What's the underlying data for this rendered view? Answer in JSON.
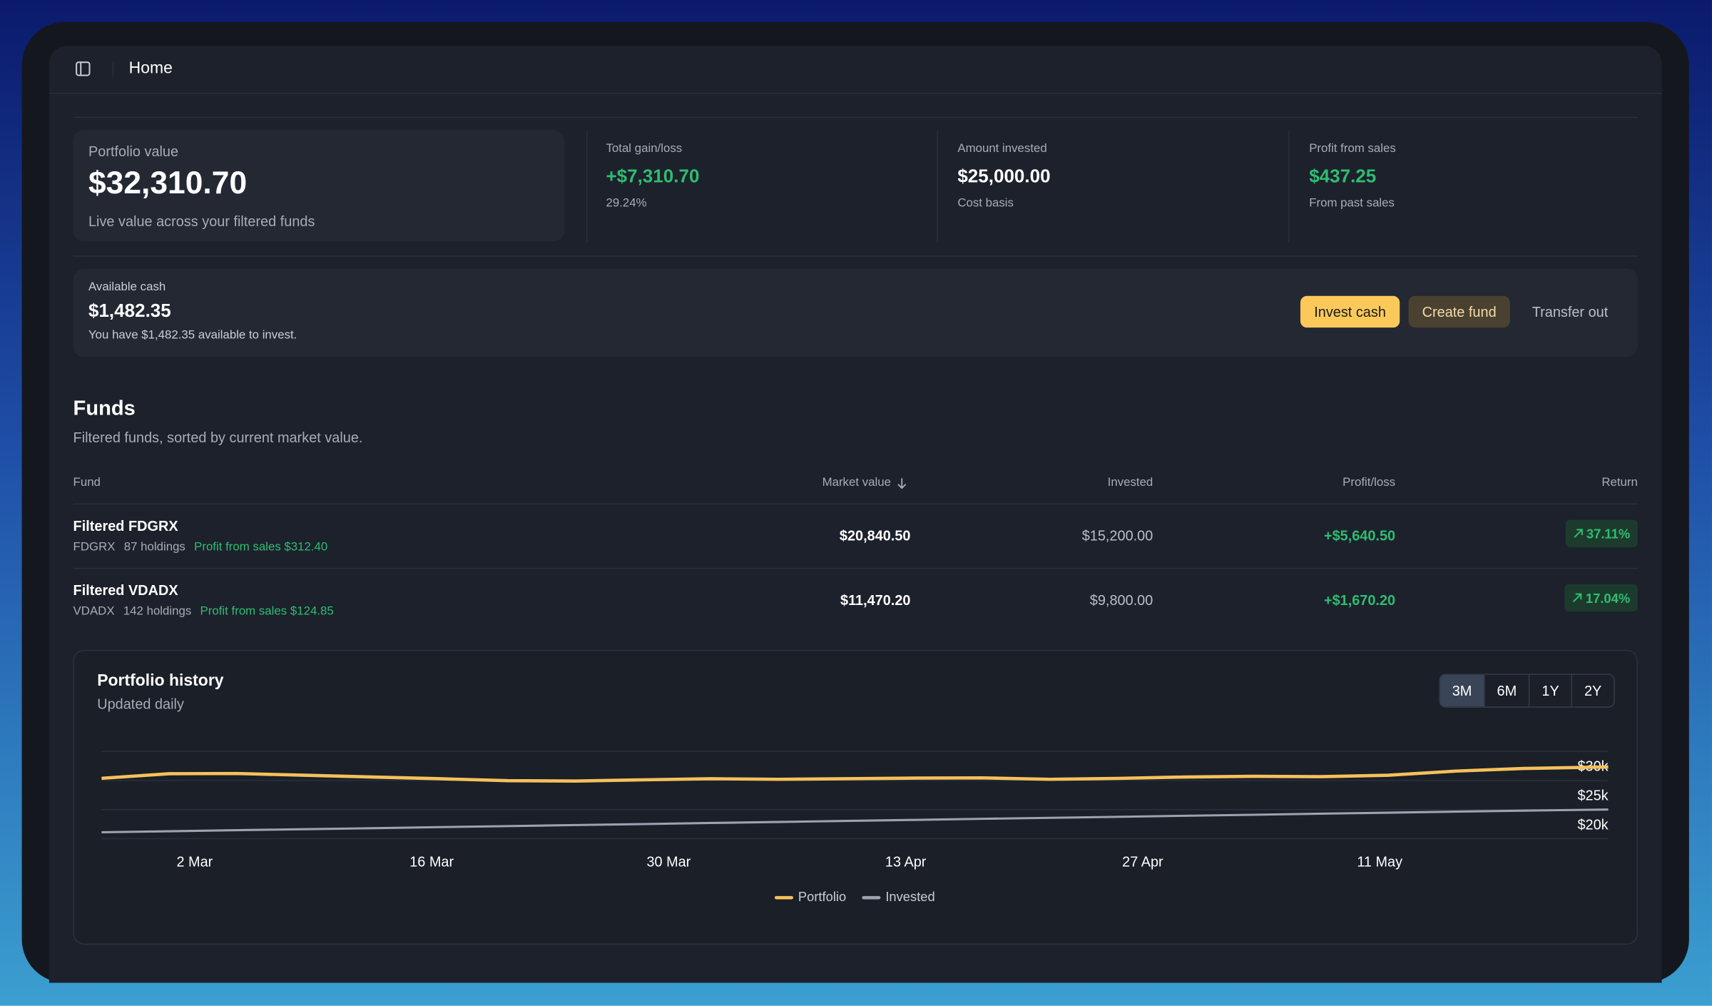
{
  "header": {
    "title": "Home"
  },
  "summary": {
    "portfolio": {
      "label": "Portfolio value",
      "value": "$32,310.70",
      "note": "Live value across your filtered funds"
    },
    "stats": [
      {
        "label": "Total gain/loss",
        "value": "+$7,310.70",
        "note": "29.24%"
      },
      {
        "label": "Amount invested",
        "value": "$25,000.00",
        "note": "Cost basis"
      },
      {
        "label": "Profit from sales",
        "value": "$437.25",
        "note": "From past sales"
      }
    ]
  },
  "cash": {
    "label": "Available cash",
    "value": "$1,482.35",
    "note": "You have $1,482.35 available to invest.",
    "actions": [
      "Invest cash",
      "Create fund",
      "Transfer out"
    ]
  },
  "funds": {
    "title": "Funds",
    "subtitle": "Filtered funds, sorted by current market value.",
    "columns": [
      "Fund",
      "Market value",
      "Invested",
      "Profit/loss",
      "Return"
    ],
    "rows": [
      {
        "name": "Filtered FDGRX",
        "ticker": "FDGRX",
        "holdings": "87 holdings",
        "sales": "Profit from sales $312.40",
        "market_value": "$20,840.50",
        "invested": "$15,200.00",
        "profit": "+$5,640.50",
        "return": "37.11%"
      },
      {
        "name": "Filtered VDADX",
        "ticker": "VDADX",
        "holdings": "142 holdings",
        "sales": "Profit from sales $124.85",
        "market_value": "$11,470.20",
        "invested": "$9,800.00",
        "profit": "+$1,670.20",
        "return": "17.04%"
      }
    ]
  },
  "history_controls": {
    "ranges": [
      "3M",
      "6M",
      "1Y",
      "2Y"
    ],
    "active": "3M"
  },
  "chart_data": {
    "type": "line",
    "title": "Portfolio history",
    "subtitle": "Updated daily",
    "x": [
      -5.5,
      -1.5,
      2.5,
      6.5,
      10.5,
      14.5,
      18.5,
      22.5,
      26.5,
      30.5,
      34.5,
      38.5,
      42.5,
      46.5,
      50.5,
      54.5,
      58.5,
      62.5,
      66.5,
      70.5,
      74.5,
      78.5,
      83.5
    ],
    "xlim": [
      -5.5,
      83.5
    ],
    "xticks": [
      {
        "value": 0,
        "label": "2 Mar"
      },
      {
        "value": 14,
        "label": "16 Mar"
      },
      {
        "value": 28,
        "label": "30 Mar"
      },
      {
        "value": 42,
        "label": "13 Apr"
      },
      {
        "value": 56,
        "label": "27 Apr"
      },
      {
        "value": 70,
        "label": "11 May"
      }
    ],
    "ylim": [
      20000,
      35000
    ],
    "yticks": [
      {
        "value": 20000,
        "label": "$20k"
      },
      {
        "value": 25000,
        "label": "$25k"
      },
      {
        "value": 30000,
        "label": "$30k"
      }
    ],
    "grid": true,
    "series": [
      {
        "name": "Portfolio",
        "color": "#f5c15a",
        "values": [
          30370,
          31150,
          31200,
          30900,
          30600,
          30300,
          29950,
          29900,
          30100,
          30300,
          30200,
          30300,
          30400,
          30450,
          30200,
          30350,
          30600,
          30700,
          30650,
          30900,
          31600,
          32050,
          32310
        ]
      },
      {
        "name": "Invested",
        "color": "#9ca3af",
        "values": [
          21100,
          21277,
          21455,
          21632,
          21809,
          21986,
          22164,
          22341,
          22518,
          22695,
          22873,
          23050,
          23227,
          23405,
          23582,
          23759,
          23936,
          24114,
          24291,
          24468,
          24645,
          24823,
          25000
        ]
      }
    ]
  }
}
